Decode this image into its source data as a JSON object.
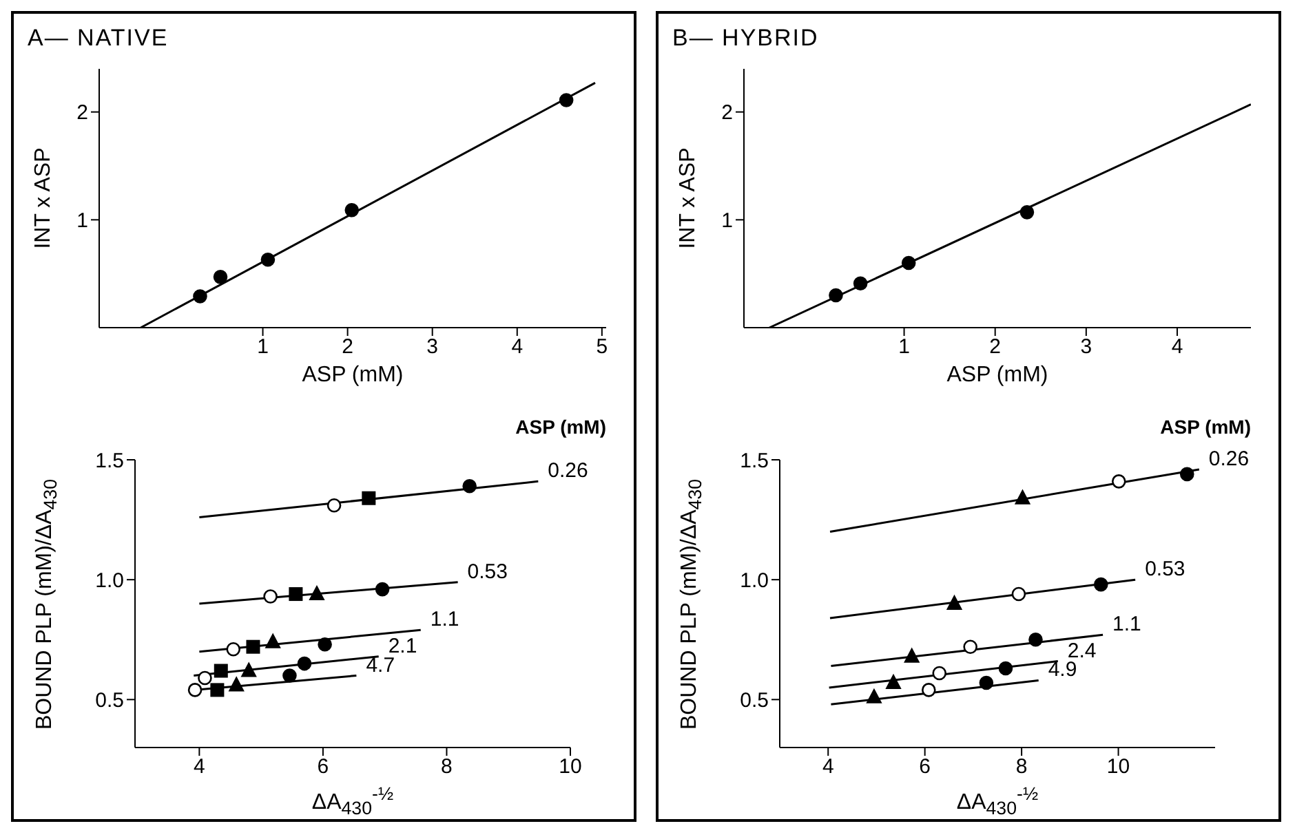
{
  "chart_data": [
    {
      "type": "scatter",
      "title": "A— NATIVE",
      "xlabel": "ASP (mM)",
      "ylabel": "INT x ASP",
      "xlim": [
        -0.93,
        5.05
      ],
      "xticks": [
        1,
        2,
        3,
        4,
        5
      ],
      "ylim": [
        0,
        2.4
      ],
      "yticks": [
        1,
        2
      ],
      "series": [
        {
          "type": "scatter",
          "marker": "circle",
          "color": "#000000",
          "x": [
            0.26,
            0.5,
            1.06,
            2.05,
            4.58
          ],
          "values": [
            0.29,
            0.47,
            0.63,
            1.09,
            2.11
          ]
        },
        {
          "type": "line",
          "marker": "none",
          "color": "#000000",
          "x": [
            -0.44,
            4.92
          ],
          "values": [
            0,
            2.27
          ]
        }
      ]
    },
    {
      "type": "scatter",
      "title": "B— HYBRID",
      "xlabel": "ASP (mM)",
      "ylabel": "INT x ASP",
      "xlim": [
        -0.76,
        4.81
      ],
      "xticks": [
        1,
        2,
        3,
        4
      ],
      "ylim": [
        0,
        2.4
      ],
      "yticks": [
        1,
        2
      ],
      "series": [
        {
          "type": "scatter",
          "marker": "circle",
          "color": "#000000",
          "x": [
            0.25,
            0.52,
            1.05,
            2.35
          ],
          "values": [
            0.3,
            0.41,
            0.6,
            1.07
          ]
        },
        {
          "type": "line",
          "marker": "none",
          "color": "#000000",
          "x": [
            -0.48,
            4.81
          ],
          "values": [
            0,
            2.07
          ]
        }
      ]
    },
    {
      "type": "scatter",
      "xlabel": "ΔA$_{430}$$^{-½}$",
      "ylabel": "BOUND PLP (mM)/ΔA$_{430}$",
      "legend_title": "ASP (mM)",
      "xlim": [
        2.96,
        10
      ],
      "xticks": [
        4,
        6,
        8,
        10
      ],
      "ylim": [
        0.3,
        1.5
      ],
      "yticks": [
        0.5,
        {
          "value": 1,
          "label": "1.0"
        },
        1.5
      ],
      "series": [
        {
          "name": "0.26",
          "type": "line",
          "marker": "none",
          "color": "#000000",
          "x": [
            4,
            9.48
          ],
          "values": [
            1.26,
            1.41
          ]
        },
        {
          "name": "0.53",
          "type": "line",
          "marker": "none",
          "color": "#000000",
          "x": [
            4,
            8.18
          ],
          "values": [
            0.9,
            0.99
          ]
        },
        {
          "name": "1.1",
          "type": "line",
          "marker": "none",
          "color": "#000000",
          "x": [
            4,
            7.58
          ],
          "values": [
            0.7,
            0.79
          ]
        },
        {
          "name": "2.1",
          "type": "line",
          "marker": "none",
          "color": "#000000",
          "x": [
            3.91,
            6.9
          ],
          "values": [
            0.6,
            0.68
          ]
        },
        {
          "name": "4.7",
          "type": "line",
          "marker": "none",
          "color": "#000000",
          "x": [
            3.91,
            6.54
          ],
          "values": [
            0.54,
            0.6
          ]
        },
        {
          "type": "scatter",
          "marker": "circle",
          "color": "#ffffff",
          "x": [
            6.18,
            5.15,
            4.55,
            4.09,
            3.93
          ],
          "values": [
            1.31,
            0.93,
            0.71,
            0.59,
            0.54
          ]
        },
        {
          "type": "scatter",
          "marker": "square",
          "color": "#000000",
          "x": [
            6.74,
            5.56,
            4.87,
            4.35,
            4.29
          ],
          "values": [
            1.34,
            0.94,
            0.72,
            0.62,
            0.54
          ]
        },
        {
          "type": "scatter",
          "marker": "triangle",
          "color": "#000000",
          "x": [
            5.9,
            5.19,
            4.8,
            4.6
          ],
          "values": [
            0.94,
            0.74,
            0.62,
            0.56
          ]
        },
        {
          "type": "scatter",
          "marker": "circle",
          "color": "#000000",
          "x": [
            8.37,
            6.96,
            6.03,
            5.7,
            5.46
          ],
          "values": [
            1.39,
            0.96,
            0.73,
            0.65,
            0.6
          ]
        }
      ]
    },
    {
      "type": "scatter",
      "xlabel": "ΔA$_{430}$$^{-½}$",
      "ylabel": "BOUND PLP (mM)/ΔA$_{430}$",
      "legend_title": "ASP (mM)",
      "xlim": [
        3,
        12
      ],
      "xticks": [
        4,
        6,
        8,
        10
      ],
      "ylim": [
        0.3,
        1.5
      ],
      "yticks": [
        0.5,
        {
          "value": 1,
          "label": "1.0"
        },
        1.5
      ],
      "series": [
        {
          "name": "0.26",
          "type": "line",
          "marker": "none",
          "color": "#000000",
          "x": [
            4.04,
            11.67
          ],
          "values": [
            1.2,
            1.46
          ]
        },
        {
          "name": "0.53",
          "type": "line",
          "marker": "none",
          "color": "#000000",
          "x": [
            4.04,
            10.35
          ],
          "values": [
            0.84,
            1.0
          ]
        },
        {
          "name": "1.1",
          "type": "line",
          "marker": "none",
          "color": "#000000",
          "x": [
            4.06,
            9.68
          ],
          "values": [
            0.64,
            0.77
          ]
        },
        {
          "name": "2.4",
          "type": "line",
          "marker": "none",
          "color": "#000000",
          "x": [
            4.02,
            8.75
          ],
          "values": [
            0.55,
            0.66
          ]
        },
        {
          "name": "4.9",
          "type": "line",
          "marker": "none",
          "color": "#000000",
          "x": [
            4.06,
            8.35
          ],
          "values": [
            0.48,
            0.58
          ]
        },
        {
          "type": "scatter",
          "marker": "triangle",
          "color": "#000000",
          "x": [
            8.02,
            6.61,
            5.73,
            5.35,
            4.95
          ],
          "values": [
            1.34,
            0.9,
            0.68,
            0.57,
            0.51
          ]
        },
        {
          "type": "scatter",
          "marker": "circle",
          "color": "#ffffff",
          "x": [
            10.01,
            7.94,
            6.94,
            6.3,
            6.08
          ],
          "values": [
            1.41,
            0.94,
            0.72,
            0.61,
            0.54
          ]
        },
        {
          "type": "scatter",
          "marker": "circle",
          "color": "#000000",
          "x": [
            11.42,
            9.64,
            8.29,
            7.67,
            7.27
          ],
          "values": [
            1.44,
            0.98,
            0.75,
            0.63,
            0.57
          ]
        }
      ]
    }
  ]
}
